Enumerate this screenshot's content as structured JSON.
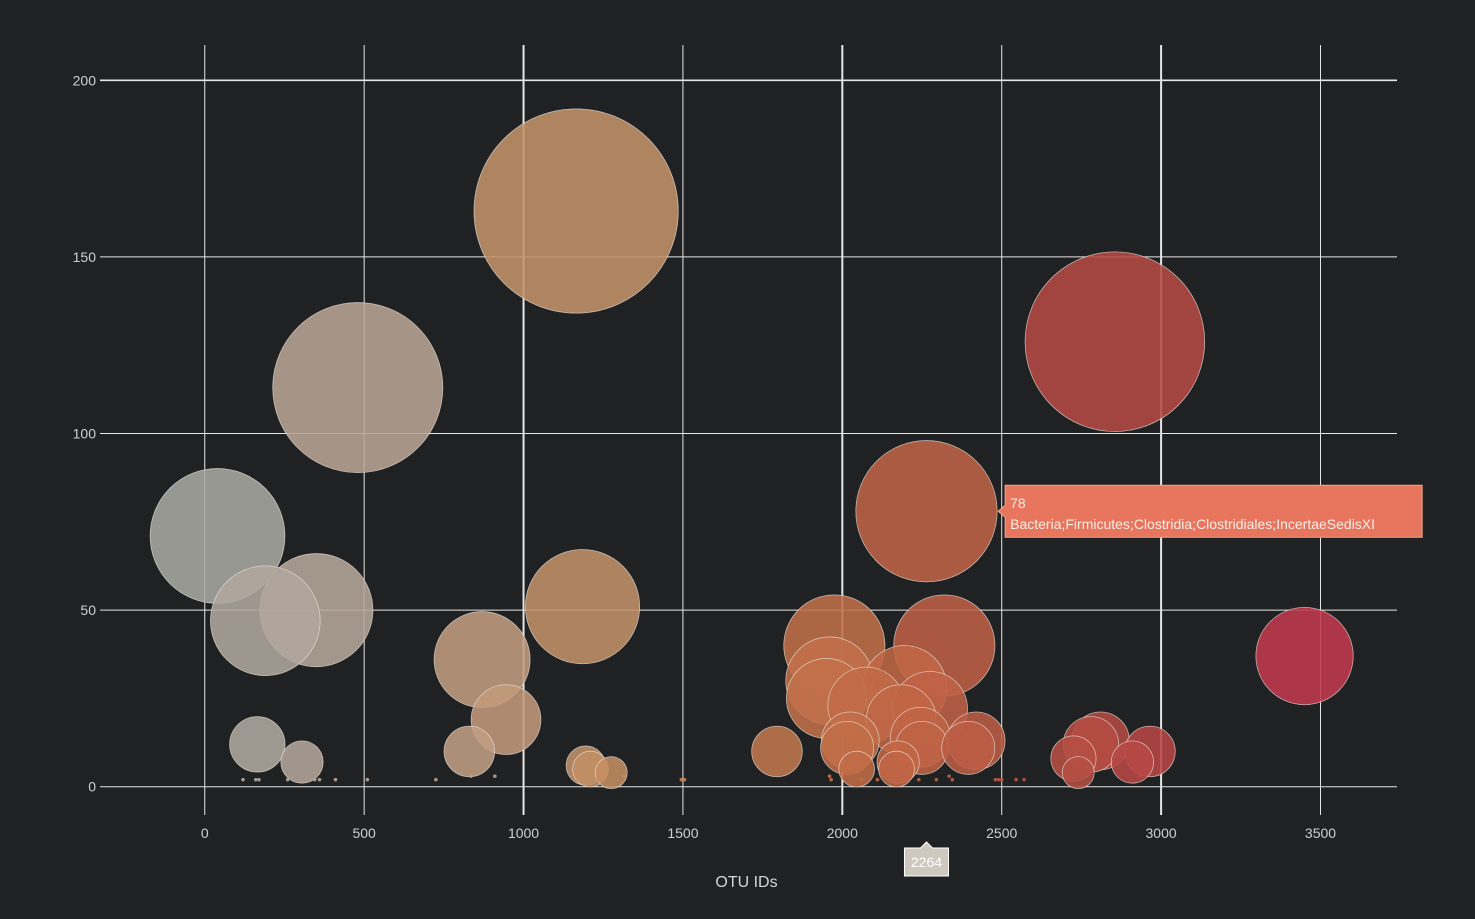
{
  "chart_data": {
    "type": "scatter",
    "title": "",
    "xlabel": "OTU IDs",
    "ylabel": "",
    "xlim": [
      -360,
      3740
    ],
    "ylim": [
      -8,
      210
    ],
    "x_ticks": [
      0,
      500,
      1000,
      1500,
      2000,
      2500,
      3000,
      3500
    ],
    "y_ticks": [
      0,
      50,
      100,
      150,
      200
    ],
    "grid": true,
    "legend": "none",
    "marker_size_encodes": "y value",
    "color_scale": [
      "#a9a9a4",
      "#c2a38d",
      "#c48959",
      "#c26a46",
      "#b44b43",
      "#c4384f"
    ],
    "points": [
      {
        "x": 40,
        "y": 71
      },
      {
        "x": 190,
        "y": 47
      },
      {
        "x": 350,
        "y": 50
      },
      {
        "x": 480,
        "y": 113
      },
      {
        "x": 165,
        "y": 12
      },
      {
        "x": 305,
        "y": 7
      },
      {
        "x": 870,
        "y": 36
      },
      {
        "x": 945,
        "y": 19
      },
      {
        "x": 830,
        "y": 10
      },
      {
        "x": 1165,
        "y": 163
      },
      {
        "x": 1185,
        "y": 51
      },
      {
        "x": 1195,
        "y": 6
      },
      {
        "x": 1210,
        "y": 5
      },
      {
        "x": 1275,
        "y": 4
      },
      {
        "x": 1795,
        "y": 10
      },
      {
        "x": 1975,
        "y": 40
      },
      {
        "x": 1960,
        "y": 30
      },
      {
        "x": 1950,
        "y": 25
      },
      {
        "x": 2025,
        "y": 13
      },
      {
        "x": 2015,
        "y": 11
      },
      {
        "x": 2045,
        "y": 5
      },
      {
        "x": 2075,
        "y": 23
      },
      {
        "x": 2185,
        "y": 19
      },
      {
        "x": 2195,
        "y": 28
      },
      {
        "x": 2175,
        "y": 7
      },
      {
        "x": 2170,
        "y": 5
      },
      {
        "x": 2264,
        "y": 78
      },
      {
        "x": 2320,
        "y": 40
      },
      {
        "x": 2275,
        "y": 22
      },
      {
        "x": 2245,
        "y": 14
      },
      {
        "x": 2250,
        "y": 11
      },
      {
        "x": 2395,
        "y": 11
      },
      {
        "x": 2420,
        "y": 13
      },
      {
        "x": 2855,
        "y": 126
      },
      {
        "x": 2725,
        "y": 8
      },
      {
        "x": 2740,
        "y": 4
      },
      {
        "x": 2780,
        "y": 12
      },
      {
        "x": 2810,
        "y": 13
      },
      {
        "x": 2910,
        "y": 7
      },
      {
        "x": 2965,
        "y": 10
      },
      {
        "x": 2935,
        "y": 3
      },
      {
        "x": 3450,
        "y": 37
      },
      {
        "x": 120,
        "y": 2
      },
      {
        "x": 160,
        "y": 2
      },
      {
        "x": 170,
        "y": 2
      },
      {
        "x": 260,
        "y": 2
      },
      {
        "x": 345,
        "y": 2
      },
      {
        "x": 360,
        "y": 2
      },
      {
        "x": 410,
        "y": 2
      },
      {
        "x": 510,
        "y": 2
      },
      {
        "x": 725,
        "y": 2
      },
      {
        "x": 835,
        "y": 3
      },
      {
        "x": 910,
        "y": 3
      },
      {
        "x": 1170,
        "y": 2
      },
      {
        "x": 1230,
        "y": 2
      },
      {
        "x": 1315,
        "y": 3
      },
      {
        "x": 1495,
        "y": 2
      },
      {
        "x": 1505,
        "y": 2
      },
      {
        "x": 1960,
        "y": 3
      },
      {
        "x": 1965,
        "y": 2
      },
      {
        "x": 2060,
        "y": 2
      },
      {
        "x": 2110,
        "y": 2
      },
      {
        "x": 2185,
        "y": 3
      },
      {
        "x": 2190,
        "y": 2
      },
      {
        "x": 2240,
        "y": 2
      },
      {
        "x": 2295,
        "y": 2
      },
      {
        "x": 2335,
        "y": 3
      },
      {
        "x": 2345,
        "y": 2
      },
      {
        "x": 2480,
        "y": 2
      },
      {
        "x": 2490,
        "y": 2
      },
      {
        "x": 2500,
        "y": 2
      },
      {
        "x": 2545,
        "y": 2
      },
      {
        "x": 2570,
        "y": 2
      }
    ],
    "hover": {
      "x": 2264,
      "y_label": "78",
      "text": "Bacteria;Firmicutes;Clostridia;Clostridiales;IncertaeSedisXI",
      "x_label": "2264"
    }
  }
}
